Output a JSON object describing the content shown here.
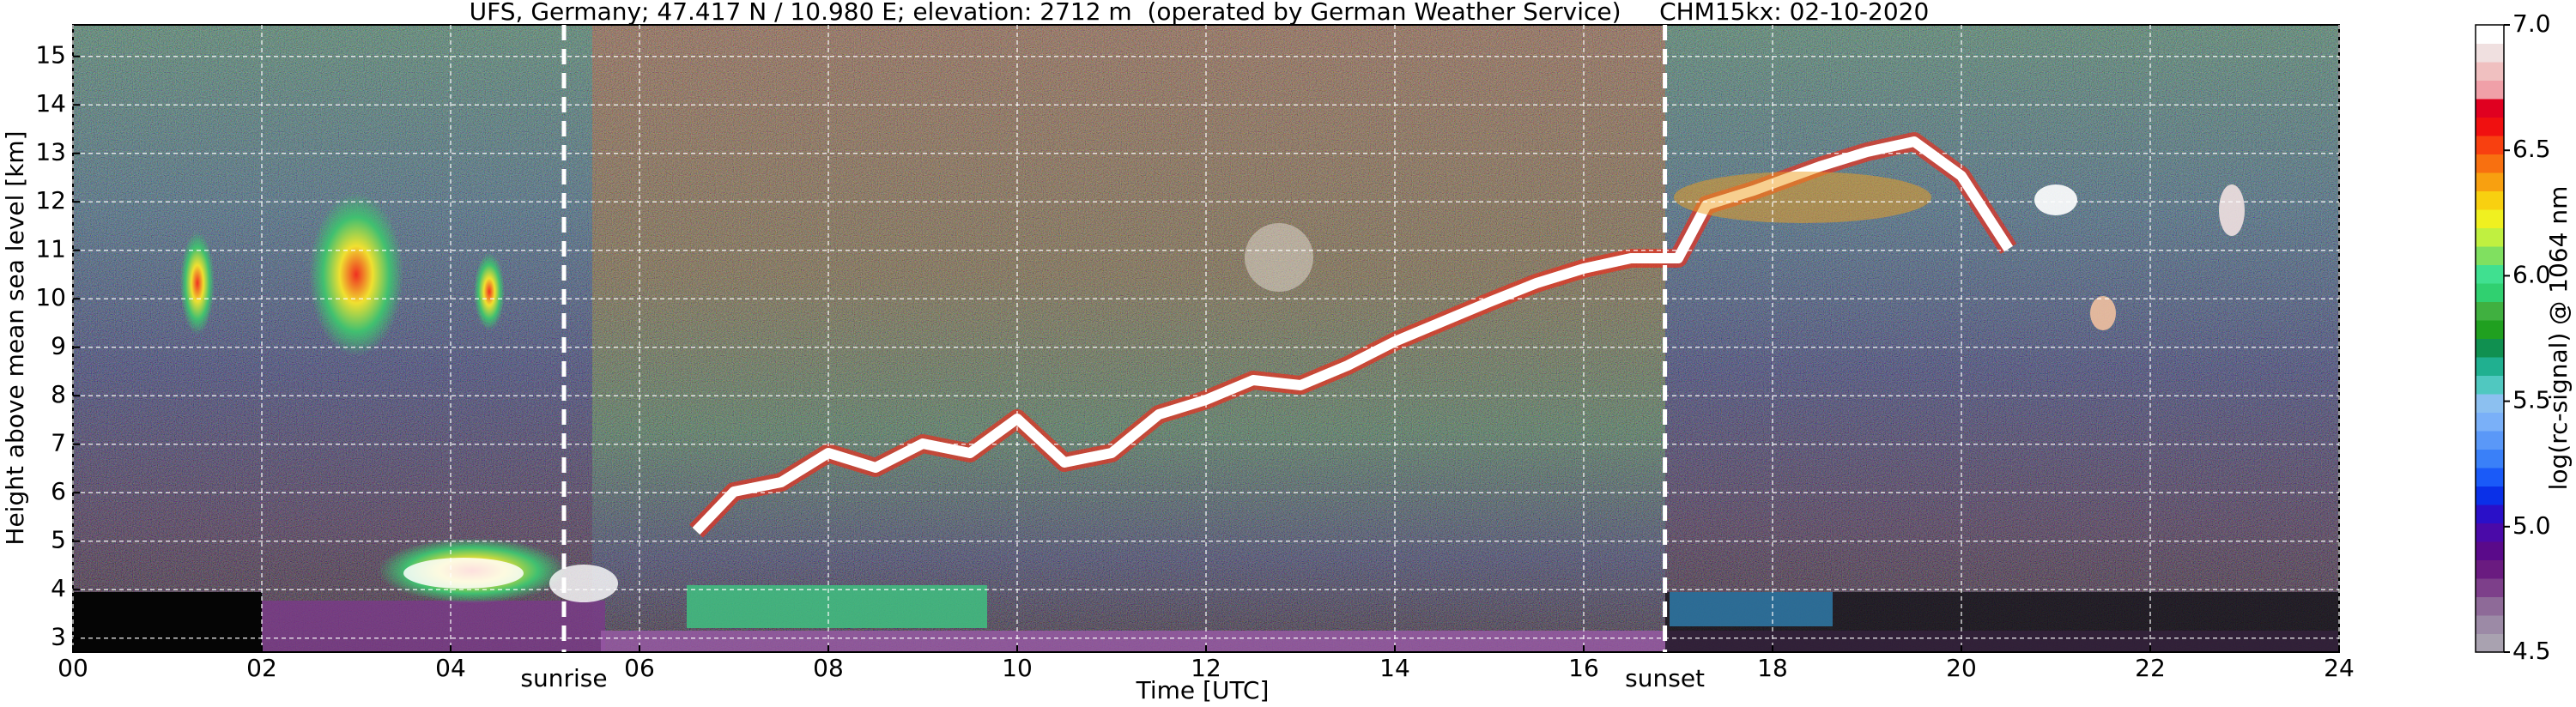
{
  "chart_data": {
    "type": "heatmap",
    "title": "UFS, Germany; 47.417 N / 10.980 E; elevation: 2712 m  (operated by German Weather Service)     CHM15kx: 02-10-2020",
    "x_label": "Time [UTC]",
    "y_label": "Height above mean sea level [km]",
    "xlim": [
      0,
      24
    ],
    "xticks": [
      {
        "value": 0,
        "label": "00"
      },
      {
        "value": 2,
        "label": "02"
      },
      {
        "value": 4,
        "label": "04"
      },
      {
        "value": 6,
        "label": "06"
      },
      {
        "value": 8,
        "label": "08"
      },
      10,
      12,
      14,
      16,
      18,
      20,
      22,
      24
    ],
    "ylim": [
      2.712,
      15.65
    ],
    "yticks": [
      3,
      4,
      5,
      6,
      7,
      8,
      9,
      10,
      11,
      12,
      13,
      14,
      15
    ],
    "grid": true,
    "annotations": [
      {
        "label": "sunrise",
        "x": 5.2
      },
      {
        "label": "sunset",
        "x": 16.86
      }
    ],
    "colorbar": {
      "label": "log(rc-signal) @ 1064 nm",
      "lim": [
        4.5,
        7.0
      ],
      "ticks": [
        4.5,
        {
          "value": 5,
          "label": "5.0"
        },
        5.5,
        {
          "value": 6,
          "label": "6.0"
        },
        6.5,
        {
          "value": 7,
          "label": "7.0"
        }
      ],
      "colors": [
        "#a9a2b0",
        "#9c8aa6",
        "#8e6a98",
        "#7d3f8a",
        "#6a1b80",
        "#5a0a8a",
        "#4a0aa8",
        "#2a10c8",
        "#0a30e8",
        "#1a5af8",
        "#3a80f8",
        "#5a98f8",
        "#7ab0f8",
        "#8cc0f0",
        "#50c8c0",
        "#20b090",
        "#109050",
        "#20a020",
        "#40b040",
        "#30d070",
        "#40e090",
        "#80e060",
        "#c0f040",
        "#f0f020",
        "#f8d010",
        "#f8a010",
        "#f87010",
        "#f84010",
        "#f01010",
        "#e00020",
        "#f0a0a8",
        "#f0c0c0",
        "#f0e0e0",
        "#ffffff"
      ]
    }
  }
}
